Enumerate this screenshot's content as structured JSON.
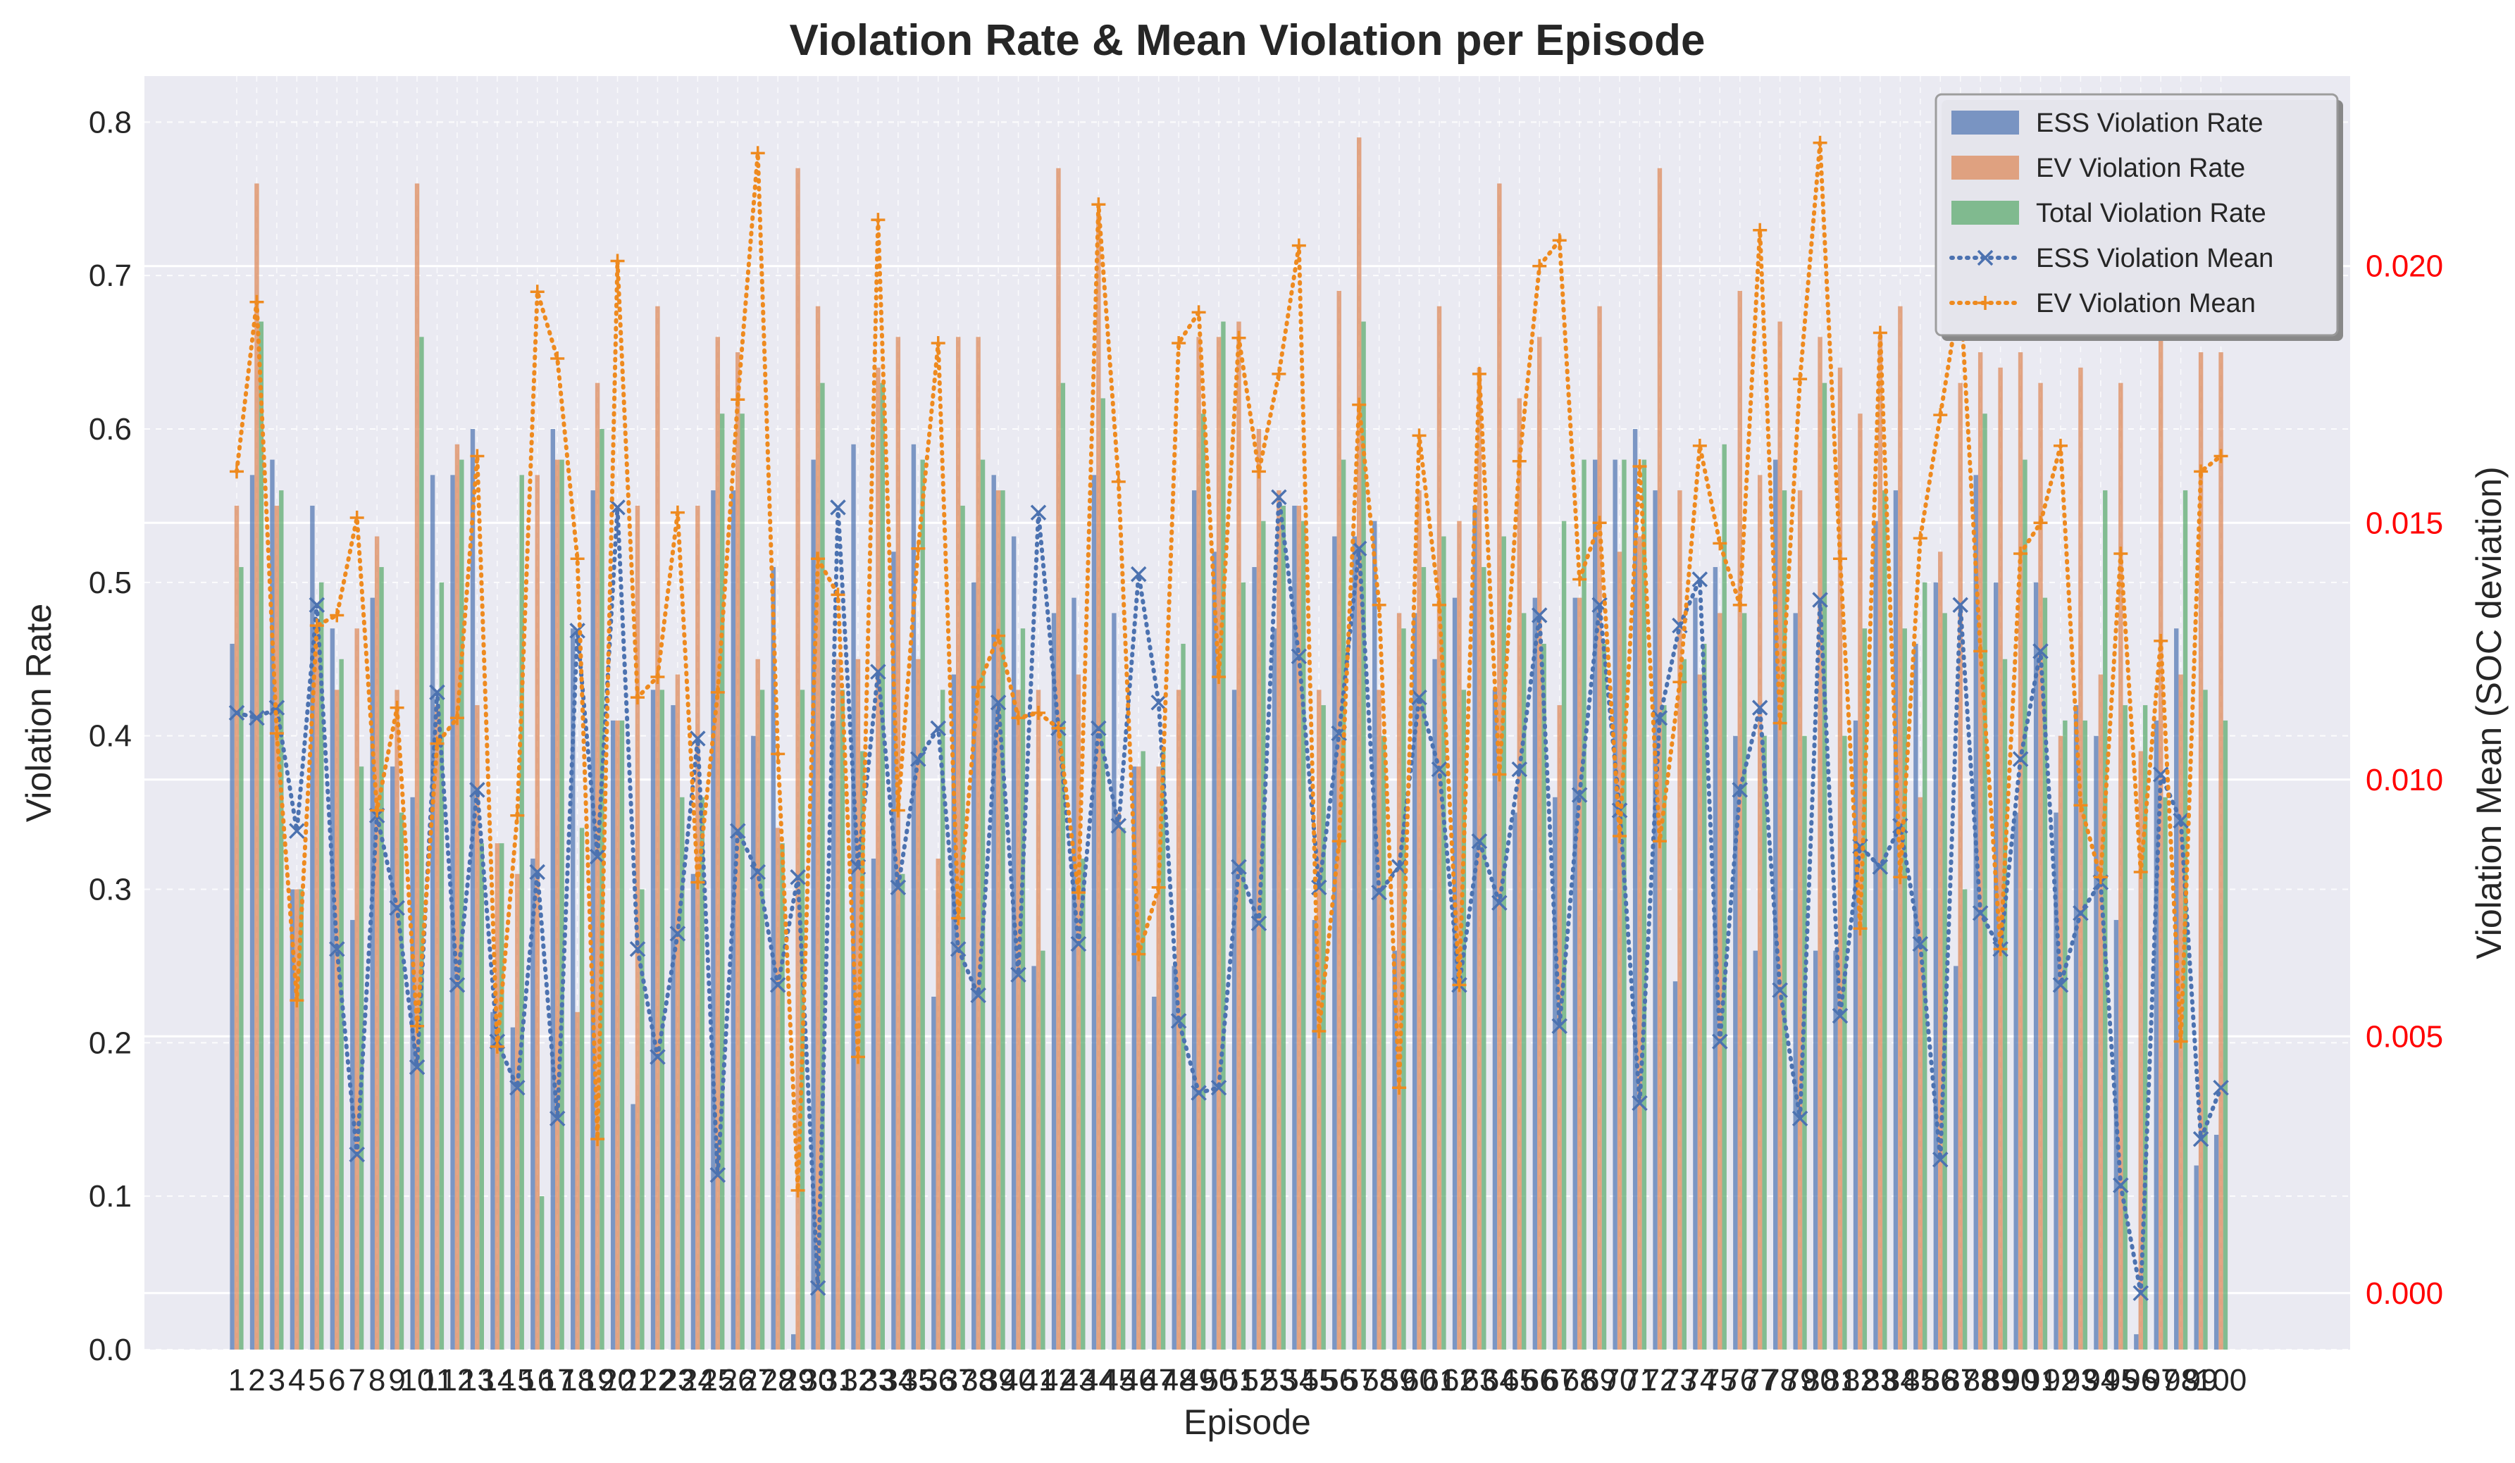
{
  "chart_data": {
    "type": "bar",
    "title": "Violation Rate & Mean Violation per Episode",
    "xlabel": "Episode",
    "ylabel": "Violation Rate",
    "y2label": "Violation Mean (SOC deviation)",
    "ylim": [
      0,
      0.83
    ],
    "y2lim": [
      -0.0011,
      0.0237
    ],
    "yticks": [
      "0.0",
      "0.1",
      "0.2",
      "0.3",
      "0.4",
      "0.5",
      "0.6",
      "0.7",
      "0.8"
    ],
    "y2ticks": [
      "0.000",
      "0.005",
      "0.010",
      "0.015",
      "0.020"
    ],
    "grid": true,
    "legend_position": "top-right",
    "categories": [
      1,
      2,
      3,
      4,
      5,
      6,
      7,
      8,
      9,
      10,
      11,
      12,
      13,
      14,
      15,
      16,
      17,
      18,
      19,
      20,
      21,
      22,
      23,
      24,
      25,
      26,
      27,
      28,
      29,
      30,
      31,
      32,
      33,
      34,
      35,
      36,
      37,
      38,
      39,
      40,
      41,
      42,
      43,
      44,
      45,
      46,
      47,
      48,
      49,
      50,
      51,
      52,
      53,
      54,
      55,
      56,
      57,
      58,
      59,
      60,
      61,
      62,
      63,
      64,
      65,
      66,
      67,
      68,
      69,
      70,
      71,
      72,
      73,
      74,
      75,
      76,
      77,
      78,
      79,
      80,
      81,
      82,
      83,
      84,
      85,
      86,
      87,
      88,
      89,
      90,
      91,
      92,
      93,
      94,
      95,
      96,
      97,
      98,
      99,
      100
    ],
    "series": [
      {
        "name": "ESS Violation Rate",
        "kind": "bar",
        "axis": "left",
        "color": "#4c72b0",
        "values": [
          0.46,
          0.57,
          0.58,
          0.3,
          0.55,
          0.47,
          0.28,
          0.49,
          0.38,
          0.36,
          0.57,
          0.57,
          0.6,
          0.22,
          0.21,
          0.32,
          0.6,
          0.47,
          0.56,
          0.41,
          0.16,
          0.43,
          0.42,
          0.31,
          0.56,
          0.56,
          0.4,
          0.51,
          0.01,
          0.58,
          0.41,
          0.59,
          0.32,
          0.52,
          0.59,
          0.23,
          0.44,
          0.5,
          0.57,
          0.53,
          0.25,
          0.48,
          0.49,
          0.57,
          0.48,
          0.38,
          0.23,
          0.25,
          0.56,
          0.52,
          0.43,
          0.51,
          0.47,
          0.55,
          0.28,
          0.53,
          0.53,
          0.54,
          0.26,
          0.48,
          0.45,
          0.49,
          0.55,
          0.43,
          0.35,
          0.49,
          0.36,
          0.49,
          0.58,
          0.58,
          0.6,
          0.56,
          0.24,
          0.49,
          0.51,
          0.4,
          0.26,
          0.58,
          0.48,
          0.26,
          0.26,
          0.41,
          0.54,
          0.56,
          0.46,
          0.5,
          0.25,
          0.57,
          0.5,
          0.35,
          0.5,
          0.35,
          0.42,
          0.4,
          0.28,
          0.01,
          0.41,
          0.47,
          0.12,
          0.14
        ]
      },
      {
        "name": "EV Violation Rate",
        "kind": "bar",
        "axis": "left",
        "color": "#dd8452",
        "values": [
          0.55,
          0.76,
          0.55,
          0.3,
          0.47,
          0.43,
          0.47,
          0.53,
          0.43,
          0.76,
          0.42,
          0.59,
          0.42,
          0.33,
          0.31,
          0.57,
          0.58,
          0.22,
          0.63,
          0.41,
          0.55,
          0.68,
          0.44,
          0.55,
          0.66,
          0.65,
          0.45,
          0.34,
          0.77,
          0.68,
          0.45,
          0.45,
          0.64,
          0.66,
          0.45,
          0.32,
          0.66,
          0.66,
          0.56,
          0.43,
          0.43,
          0.77,
          0.44,
          0.74,
          0.35,
          0.38,
          0.38,
          0.43,
          0.66,
          0.66,
          0.67,
          0.6,
          0.56,
          0.55,
          0.43,
          0.69,
          0.79,
          0.43,
          0.48,
          0.56,
          0.68,
          0.54,
          0.64,
          0.76,
          0.62,
          0.66,
          0.42,
          0.49,
          0.68,
          0.52,
          0.53,
          0.77,
          0.56,
          0.44,
          0.48,
          0.69,
          0.57,
          0.67,
          0.56,
          0.66,
          0.64,
          0.61,
          0.66,
          0.68,
          0.36,
          0.52,
          0.63,
          0.65,
          0.64,
          0.65,
          0.63,
          0.4,
          0.64,
          0.44,
          0.63,
          0.39,
          0.66,
          0.44,
          0.65,
          0.65
        ]
      },
      {
        "name": "Total Violation Rate",
        "kind": "bar",
        "axis": "left",
        "color": "#55a868",
        "values": [
          0.51,
          0.67,
          0.56,
          0.3,
          0.5,
          0.45,
          0.38,
          0.51,
          0.35,
          0.66,
          0.5,
          0.58,
          0.33,
          0.33,
          0.57,
          0.1,
          0.58,
          0.34,
          0.6,
          0.41,
          0.3,
          0.43,
          0.36,
          0.36,
          0.61,
          0.61,
          0.43,
          0.33,
          0.43,
          0.63,
          0.43,
          0.39,
          0.63,
          0.31,
          0.58,
          0.43,
          0.55,
          0.58,
          0.56,
          0.47,
          0.26,
          0.63,
          0.32,
          0.62,
          0.34,
          0.39,
          0.39,
          0.46,
          0.61,
          0.67,
          0.5,
          0.54,
          0.55,
          0.54,
          0.42,
          0.58,
          0.67,
          0.4,
          0.47,
          0.51,
          0.53,
          0.43,
          0.51,
          0.53,
          0.48,
          0.46,
          0.54,
          0.58,
          0.46,
          0.58,
          0.58,
          0.42,
          0.45,
          0.46,
          0.59,
          0.48,
          0.4,
          0.56,
          0.4,
          0.63,
          0.4,
          0.47,
          0.56,
          0.47,
          0.5,
          0.48,
          0.3,
          0.61,
          0.45,
          0.58,
          0.49,
          0.41,
          0.41,
          0.56,
          0.42,
          0.42,
          0.36,
          0.56,
          0.43,
          0.41
        ]
      },
      {
        "name": "ESS Violation Mean",
        "kind": "line",
        "axis": "right",
        "color": "#4c72b0",
        "marker": "x",
        "values": [
          0.0113,
          0.0112,
          0.0114,
          0.009,
          0.0134,
          0.0067,
          0.0027,
          0.0093,
          0.0075,
          0.0044,
          0.0117,
          0.006,
          0.0098,
          0.0049,
          0.004,
          0.0082,
          0.0034,
          0.0129,
          0.0085,
          0.0153,
          0.0067,
          0.0046,
          0.007,
          0.0108,
          0.0023,
          0.009,
          0.0082,
          0.006,
          0.0081,
          0.0001,
          0.0153,
          0.0083,
          0.0121,
          0.0079,
          0.0104,
          0.011,
          0.0067,
          0.0058,
          0.0115,
          0.0062,
          0.0152,
          0.011,
          0.0068,
          0.011,
          0.0091,
          0.014,
          0.0115,
          0.0053,
          0.0039,
          0.004,
          0.0083,
          0.0072,
          0.0155,
          0.0124,
          0.0079,
          0.0109,
          0.0145,
          0.0078,
          0.0083,
          0.0116,
          0.0102,
          0.006,
          0.0088,
          0.0076,
          0.0102,
          0.0132,
          0.0052,
          0.0097,
          0.0134,
          0.0094,
          0.0037,
          0.0112,
          0.013,
          0.0139,
          0.0049,
          0.0098,
          0.0114,
          0.0059,
          0.0034,
          0.0135,
          0.0054,
          0.0087,
          0.0083,
          0.0091,
          0.0068,
          0.0026,
          0.0134,
          0.0074,
          0.0067,
          0.0104,
          0.0125,
          0.006,
          0.0074,
          0.008,
          0.0021,
          0.0,
          0.0101,
          0.0092,
          0.003,
          0.004
        ]
      },
      {
        "name": "EV Violation Mean",
        "kind": "line",
        "axis": "right",
        "color": "#ee8a1f",
        "marker": "+",
        "values": [
          0.016,
          0.0193,
          0.0109,
          0.0057,
          0.013,
          0.0132,
          0.0151,
          0.0094,
          0.0114,
          0.0052,
          0.0107,
          0.0112,
          0.0163,
          0.0048,
          0.0093,
          0.0195,
          0.0182,
          0.0143,
          0.003,
          0.0201,
          0.0116,
          0.012,
          0.0152,
          0.008,
          0.0117,
          0.0174,
          0.0222,
          0.0105,
          0.002,
          0.0143,
          0.0136,
          0.0046,
          0.0209,
          0.0094,
          0.0145,
          0.0185,
          0.0073,
          0.0118,
          0.0128,
          0.0112,
          0.0113,
          0.011,
          0.0078,
          0.0212,
          0.0158,
          0.0066,
          0.0079,
          0.0185,
          0.0191,
          0.012,
          0.0186,
          0.016,
          0.0179,
          0.0204,
          0.0051,
          0.0088,
          0.0173,
          0.0134,
          0.004,
          0.0167,
          0.0134,
          0.006,
          0.0179,
          0.0101,
          0.0162,
          0.02,
          0.0205,
          0.0139,
          0.015,
          0.0089,
          0.0161,
          0.0088,
          0.0119,
          0.0165,
          0.0146,
          0.0134,
          0.0207,
          0.0111,
          0.0178,
          0.0224,
          0.0143,
          0.0071,
          0.0187,
          0.0081,
          0.0147,
          0.0171,
          0.0195,
          0.0125,
          0.0067,
          0.0144,
          0.015,
          0.0165,
          0.0095,
          0.0081,
          0.0144,
          0.0082,
          0.0127,
          0.0049,
          0.016,
          0.0163
        ]
      }
    ]
  }
}
